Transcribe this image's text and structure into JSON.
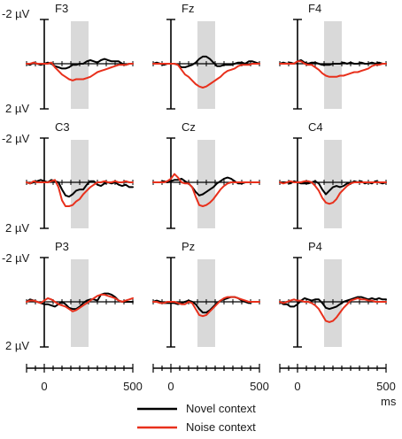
{
  "chart_data": {
    "type": "line",
    "grid": false,
    "y_inverted": true,
    "x_unit": "ms",
    "y_unit": "µV",
    "xlim": [
      -100,
      500
    ],
    "ylim": [
      -2,
      2
    ],
    "y_tick_labels": [
      "-2 µV",
      "2 µV"
    ],
    "x_ticks": [
      0,
      500
    ],
    "x_minor_step": 50,
    "x_tick_labels": [
      "0",
      "500",
      "0",
      "500",
      "0",
      "500"
    ],
    "x_axis_unit_label": "ms",
    "highlight_window_ms": [
      150,
      250
    ],
    "x": [
      -100,
      -80,
      -60,
      -40,
      -20,
      0,
      20,
      40,
      60,
      80,
      100,
      120,
      140,
      160,
      180,
      200,
      220,
      240,
      260,
      280,
      300,
      320,
      340,
      360,
      380,
      400,
      420,
      440,
      460,
      480,
      500
    ],
    "legend": [
      {
        "label": "Novel context",
        "color": "#000000"
      },
      {
        "label": "Noise context",
        "color": "#e8301c"
      }
    ],
    "panels": [
      {
        "label": "F3",
        "series": [
          {
            "values": [
              0,
              0.05,
              -0.05,
              0,
              0.05,
              0,
              -0.05,
              0,
              0.1,
              0.15,
              0.2,
              0.2,
              0.15,
              0.05,
              0.05,
              0,
              0,
              -0.1,
              -0.15,
              -0.1,
              -0.05,
              -0.15,
              -0.2,
              -0.15,
              -0.1,
              -0.1,
              -0.1,
              0,
              0.05,
              0,
              0
            ]
          },
          {
            "values": [
              0,
              0,
              -0.05,
              0,
              0,
              0,
              0,
              -0.05,
              0.15,
              0.3,
              0.45,
              0.55,
              0.65,
              0.7,
              0.65,
              0.65,
              0.65,
              0.6,
              0.55,
              0.45,
              0.35,
              0.3,
              0.25,
              0.2,
              0.15,
              0.1,
              0.05,
              0.05,
              0.05,
              0,
              0
            ]
          }
        ]
      },
      {
        "label": "Fz",
        "series": [
          {
            "values": [
              0,
              -0.05,
              0,
              0.05,
              0,
              0,
              0,
              0.05,
              0.15,
              0.15,
              0.1,
              0.05,
              -0.05,
              -0.2,
              -0.3,
              -0.3,
              -0.2,
              -0.05,
              0.1,
              0.1,
              0.05,
              0.05,
              0.05,
              0,
              -0.05,
              -0.05,
              0,
              -0.1,
              -0.1,
              -0.05,
              0
            ]
          },
          {
            "values": [
              0,
              0,
              0,
              0,
              0,
              0,
              0,
              0.05,
              0.25,
              0.45,
              0.55,
              0.7,
              0.85,
              0.95,
              1.0,
              0.95,
              0.85,
              0.75,
              0.65,
              0.55,
              0.4,
              0.3,
              0.25,
              0.2,
              0.1,
              0.05,
              0.05,
              0.05,
              0,
              0,
              0
            ]
          }
        ]
      },
      {
        "label": "F4",
        "series": [
          {
            "values": [
              0,
              -0.05,
              0,
              -0.05,
              0,
              -0.1,
              -0.15,
              -0.05,
              0,
              -0.05,
              -0.05,
              0,
              0.05,
              0.05,
              0.05,
              0,
              0,
              0,
              -0.05,
              0,
              -0.05,
              0,
              0,
              -0.05,
              0,
              0,
              -0.05,
              0,
              -0.05,
              0,
              0
            ]
          },
          {
            "values": [
              0,
              0,
              0,
              0,
              0,
              -0.1,
              -0.1,
              0,
              0.05,
              0.05,
              0.15,
              0.25,
              0.4,
              0.5,
              0.55,
              0.55,
              0.55,
              0.5,
              0.5,
              0.45,
              0.4,
              0.35,
              0.35,
              0.3,
              0.25,
              0.2,
              0.1,
              0.05,
              0.05,
              0,
              0
            ]
          }
        ]
      },
      {
        "label": "C3",
        "series": [
          {
            "values": [
              0,
              0.05,
              0,
              -0.05,
              -0.1,
              -0.05,
              0,
              -0.1,
              -0.05,
              0,
              0.3,
              0.55,
              0.6,
              0.5,
              0.35,
              0.3,
              0.3,
              0.1,
              -0.05,
              -0.05,
              0.1,
              0.15,
              0.05,
              0,
              0.05,
              0,
              0.1,
              0.15,
              0.1,
              0.2,
              0.2
            ]
          },
          {
            "values": [
              0,
              0.05,
              -0.05,
              0,
              0,
              0,
              0,
              -0.05,
              -0.1,
              0.2,
              0.75,
              1.0,
              1.0,
              0.95,
              0.8,
              0.7,
              0.5,
              0.35,
              0.2,
              0.1,
              0,
              0,
              -0.05,
              0,
              0,
              -0.05,
              0,
              0,
              -0.05,
              0,
              0
            ]
          }
        ]
      },
      {
        "label": "Cz",
        "series": [
          {
            "values": [
              0,
              0,
              0,
              -0.05,
              0,
              -0.05,
              -0.1,
              -0.1,
              -0.15,
              -0.05,
              0.05,
              0.2,
              0.4,
              0.55,
              0.5,
              0.4,
              0.3,
              0.2,
              0.05,
              -0.05,
              -0.15,
              -0.2,
              -0.15,
              -0.05,
              0.05,
              0.05,
              0,
              0,
              0,
              0,
              0
            ]
          },
          {
            "values": [
              0,
              0,
              0,
              0,
              -0.05,
              -0.15,
              -0.35,
              -0.2,
              0,
              0.05,
              0.05,
              0.2,
              0.6,
              0.95,
              1.0,
              0.95,
              0.85,
              0.7,
              0.5,
              0.3,
              0.15,
              0.05,
              0,
              0,
              0,
              0,
              0,
              0,
              0,
              0,
              0
            ]
          }
        ]
      },
      {
        "label": "C4",
        "series": [
          {
            "values": [
              0,
              0,
              0,
              0.05,
              -0.05,
              0,
              0.05,
              0.05,
              0.05,
              0,
              -0.05,
              0.05,
              0.3,
              0.5,
              0.35,
              0.2,
              0.15,
              0.2,
              0.15,
              0.05,
              0.05,
              -0.05,
              0,
              -0.05,
              0.05,
              0,
              0.05,
              -0.05,
              0,
              0.05,
              0
            ]
          },
          {
            "values": [
              0,
              0.05,
              0,
              -0.05,
              0,
              0,
              0,
              -0.05,
              -0.05,
              0,
              0.15,
              0.35,
              0.65,
              0.85,
              0.9,
              0.85,
              0.7,
              0.45,
              0.3,
              0.15,
              0.05,
              0,
              0,
              0,
              0,
              0,
              0,
              0,
              0,
              0,
              0
            ]
          }
        ]
      },
      {
        "label": "P3",
        "series": [
          {
            "values": [
              0,
              -0.1,
              -0.05,
              0,
              0.05,
              0.1,
              0.1,
              0.15,
              0.2,
              0.1,
              0,
              0.1,
              0.25,
              0.3,
              0.3,
              0.2,
              0.05,
              -0.05,
              -0.1,
              -0.1,
              -0.05,
              -0.3,
              -0.35,
              -0.35,
              -0.3,
              -0.2,
              -0.05,
              0,
              0,
              0,
              0
            ]
          },
          {
            "values": [
              0,
              -0.05,
              -0.05,
              0,
              0.05,
              -0.05,
              -0.15,
              -0.1,
              0,
              0.1,
              0.15,
              0.2,
              0.3,
              0.4,
              0.35,
              0.25,
              0.15,
              0.05,
              -0.05,
              -0.15,
              -0.25,
              -0.3,
              -0.3,
              -0.25,
              -0.2,
              -0.15,
              -0.05,
              0,
              -0.05,
              -0.1,
              -0.15
            ]
          }
        ]
      },
      {
        "label": "Pz",
        "series": [
          {
            "values": [
              0,
              -0.05,
              0,
              0.05,
              0.05,
              0.05,
              0.05,
              0.1,
              0.05,
              0,
              -0.05,
              0,
              0.1,
              0.3,
              0.45,
              0.45,
              0.35,
              0.2,
              0.05,
              -0.05,
              -0.1,
              -0.15,
              -0.2,
              -0.2,
              -0.15,
              -0.05,
              0,
              0.05,
              0,
              0,
              0
            ]
          },
          {
            "values": [
              0,
              0,
              0.05,
              0.05,
              0,
              0,
              0,
              0.05,
              0.1,
              0.1,
              0,
              0.05,
              0.3,
              0.55,
              0.6,
              0.55,
              0.4,
              0.25,
              0.1,
              -0.05,
              -0.15,
              -0.2,
              -0.2,
              -0.2,
              -0.15,
              -0.1,
              -0.05,
              0,
              0,
              0,
              0
            ]
          }
        ]
      },
      {
        "label": "P4",
        "series": [
          {
            "values": [
              0,
              0.1,
              0.1,
              0.2,
              0.2,
              0.1,
              -0.05,
              -0.15,
              -0.1,
              -0.05,
              -0.1,
              -0.1,
              0.05,
              0.25,
              0.3,
              0.25,
              0.2,
              0.1,
              0,
              -0.05,
              -0.1,
              -0.15,
              -0.2,
              -0.2,
              -0.15,
              -0.1,
              -0.15,
              -0.1,
              -0.15,
              -0.1,
              -0.1
            ]
          },
          {
            "values": [
              0,
              0.05,
              0,
              -0.05,
              -0.1,
              -0.05,
              -0.05,
              0,
              0,
              0.05,
              0.15,
              0.3,
              0.55,
              0.8,
              0.85,
              0.8,
              0.65,
              0.45,
              0.25,
              0.1,
              -0.05,
              -0.1,
              -0.15,
              -0.1,
              -0.1,
              -0.05,
              -0.05,
              0,
              0,
              0,
              0
            ]
          }
        ]
      }
    ]
  }
}
